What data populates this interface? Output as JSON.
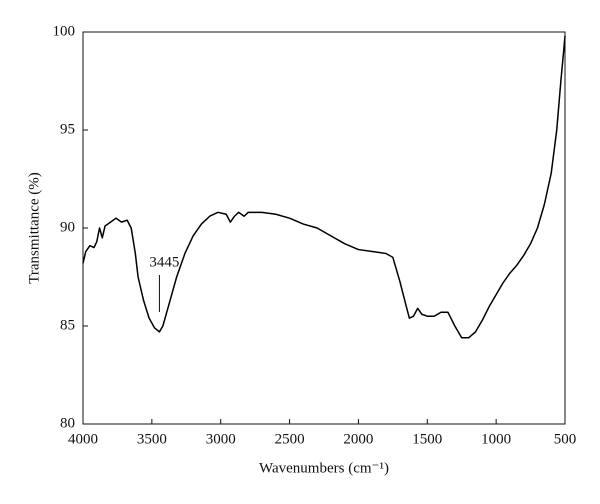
{
  "chart_data": {
    "type": "line",
    "xlabel": "Wavenumbers (cm⁻¹)",
    "ylabel": "Transmittance (%)",
    "x": [
      4000,
      3980,
      3950,
      3920,
      3900,
      3880,
      3860,
      3840,
      3800,
      3760,
      3720,
      3680,
      3650,
      3620,
      3600,
      3560,
      3520,
      3480,
      3445,
      3420,
      3380,
      3320,
      3260,
      3200,
      3140,
      3080,
      3020,
      2960,
      2930,
      2900,
      2870,
      2830,
      2800,
      2700,
      2600,
      2500,
      2400,
      2300,
      2200,
      2100,
      2000,
      1900,
      1800,
      1750,
      1700,
      1660,
      1630,
      1600,
      1570,
      1540,
      1500,
      1450,
      1400,
      1350,
      1300,
      1250,
      1200,
      1150,
      1100,
      1050,
      1000,
      950,
      900,
      850,
      800,
      750,
      700,
      650,
      600,
      560,
      530,
      510,
      500
    ],
    "series": [
      {
        "color": "#000000",
        "values": [
          88.2,
          88.8,
          89.1,
          89.0,
          89.3,
          90.0,
          89.5,
          90.1,
          90.3,
          90.5,
          90.3,
          90.4,
          90.0,
          88.7,
          87.5,
          86.3,
          85.4,
          84.9,
          84.7,
          85.0,
          86.0,
          87.5,
          88.7,
          89.6,
          90.2,
          90.6,
          90.8,
          90.7,
          90.3,
          90.6,
          90.8,
          90.6,
          90.8,
          90.8,
          90.7,
          90.5,
          90.2,
          90.0,
          89.6,
          89.2,
          88.9,
          88.8,
          88.7,
          88.5,
          87.3,
          86.2,
          85.4,
          85.5,
          85.9,
          85.6,
          85.5,
          85.5,
          85.7,
          85.7,
          85.0,
          84.4,
          84.4,
          84.7,
          85.3,
          86.0,
          86.6,
          87.2,
          87.7,
          88.1,
          88.6,
          89.2,
          90.0,
          91.2,
          92.8,
          95.0,
          97.5,
          99.0,
          99.8
        ]
      }
    ],
    "xlim": [
      4000,
      500
    ],
    "xticks": [
      4000,
      3500,
      3000,
      2500,
      2000,
      1500,
      1000,
      500
    ],
    "ylim": [
      80,
      100
    ],
    "yticks": [
      80,
      85,
      90,
      95,
      100
    ],
    "annotations": [
      {
        "label": "3445",
        "x": 3445
      }
    ]
  }
}
